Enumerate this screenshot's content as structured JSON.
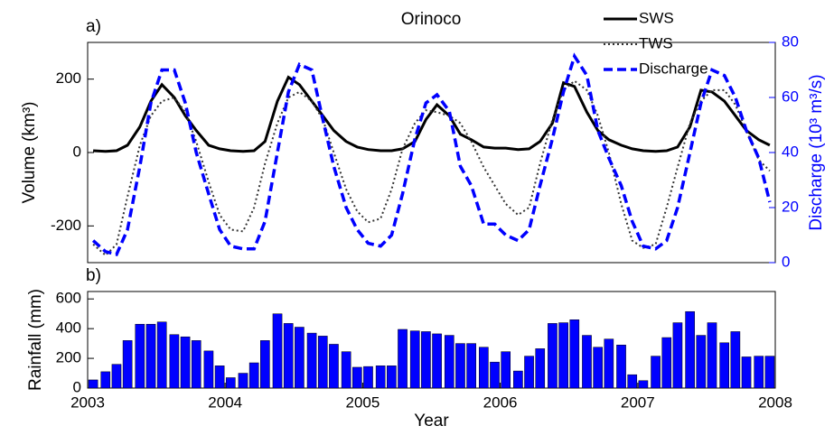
{
  "chart_data": [
    {
      "type": "line",
      "panel_label": "a)",
      "title": "Orinoco",
      "ylabel": "Volume (km³)",
      "y2label": "Discharge (10³ m³/s)",
      "y2color": "#0000ff",
      "xlim": [
        2003,
        2008
      ],
      "ylim": [
        -300,
        300
      ],
      "yticks": [
        -200,
        0,
        200
      ],
      "y2lim": [
        0,
        80
      ],
      "y2ticks": [
        0,
        20,
        40,
        60,
        80
      ],
      "legend": "upper right",
      "x": [
        2003.04,
        2003.13,
        2003.21,
        2003.29,
        2003.38,
        2003.46,
        2003.54,
        2003.63,
        2003.71,
        2003.79,
        2003.88,
        2003.96,
        2004.04,
        2004.13,
        2004.21,
        2004.29,
        2004.38,
        2004.46,
        2004.54,
        2004.63,
        2004.71,
        2004.79,
        2004.88,
        2004.96,
        2005.04,
        2005.13,
        2005.21,
        2005.29,
        2005.38,
        2005.46,
        2005.54,
        2005.63,
        2005.71,
        2005.79,
        2005.88,
        2005.96,
        2006.04,
        2006.13,
        2006.21,
        2006.29,
        2006.38,
        2006.46,
        2006.54,
        2006.63,
        2006.71,
        2006.79,
        2006.88,
        2006.96,
        2007.04,
        2007.13,
        2007.21,
        2007.29,
        2007.38,
        2007.46,
        2007.54,
        2007.63,
        2007.71,
        2007.79,
        2007.88,
        2007.96
      ],
      "series": [
        {
          "name": "SWS",
          "color": "#000000",
          "linestyle": "solid",
          "width": 3,
          "values": [
            5,
            3,
            5,
            20,
            70,
            140,
            185,
            150,
            100,
            60,
            20,
            10,
            5,
            3,
            5,
            30,
            140,
            205,
            185,
            140,
            100,
            60,
            30,
            15,
            8,
            5,
            5,
            10,
            30,
            90,
            130,
            100,
            50,
            35,
            15,
            12,
            12,
            8,
            10,
            30,
            80,
            190,
            180,
            110,
            60,
            35,
            20,
            10,
            5,
            3,
            5,
            15,
            70,
            170,
            165,
            140,
            100,
            60,
            35,
            20
          ]
        },
        {
          "name": "TWS",
          "color": "#333333",
          "linestyle": "dotted",
          "width": 2,
          "values": [
            -250,
            -280,
            -250,
            -120,
            20,
            100,
            140,
            150,
            110,
            30,
            -80,
            -170,
            -210,
            -215,
            -150,
            -30,
            80,
            150,
            165,
            140,
            90,
            0,
            -100,
            -160,
            -190,
            -180,
            -100,
            10,
            80,
            115,
            110,
            100,
            80,
            30,
            -40,
            -90,
            -140,
            -170,
            -150,
            -30,
            90,
            170,
            195,
            170,
            100,
            0,
            -140,
            -240,
            -260,
            -250,
            -150,
            -40,
            80,
            140,
            170,
            170,
            130,
            60,
            -20,
            -50
          ]
        },
        {
          "name": "Discharge",
          "color": "#0000ff",
          "linestyle": "dashed",
          "width": 3.5,
          "axis": "y2",
          "values": [
            8,
            4,
            3,
            12,
            35,
            58,
            70,
            70,
            58,
            40,
            25,
            12,
            6,
            5,
            5,
            15,
            40,
            62,
            72,
            70,
            52,
            35,
            20,
            12,
            7,
            6,
            10,
            25,
            45,
            58,
            61,
            55,
            35,
            28,
            14,
            14,
            10,
            8,
            12,
            28,
            45,
            62,
            75,
            68,
            48,
            38,
            28,
            15,
            6,
            5,
            8,
            20,
            40,
            58,
            70,
            68,
            60,
            48,
            38,
            22
          ]
        }
      ]
    },
    {
      "type": "bar",
      "panel_label": "b)",
      "xlabel": "Year",
      "ylabel": "Rainfall (mm)",
      "color": "#0000ff",
      "xlim": [
        2003,
        2008
      ],
      "xticks": [
        2003,
        2004,
        2005,
        2006,
        2007,
        2008
      ],
      "ylim": [
        0,
        650
      ],
      "yticks": [
        0,
        200,
        400,
        600
      ],
      "x": [
        2003.04,
        2003.13,
        2003.21,
        2003.29,
        2003.38,
        2003.46,
        2003.54,
        2003.63,
        2003.71,
        2003.79,
        2003.88,
        2003.96,
        2004.04,
        2004.13,
        2004.21,
        2004.29,
        2004.38,
        2004.46,
        2004.54,
        2004.63,
        2004.71,
        2004.79,
        2004.88,
        2004.96,
        2005.04,
        2005.13,
        2005.21,
        2005.29,
        2005.38,
        2005.46,
        2005.54,
        2005.63,
        2005.71,
        2005.79,
        2005.88,
        2005.96,
        2006.04,
        2006.13,
        2006.21,
        2006.29,
        2006.38,
        2006.46,
        2006.54,
        2006.63,
        2006.71,
        2006.79,
        2006.88,
        2006.96,
        2007.04,
        2007.13,
        2007.21,
        2007.29,
        2007.38,
        2007.46,
        2007.54,
        2007.63,
        2007.71,
        2007.79,
        2007.88,
        2007.96
      ],
      "values": [
        55,
        110,
        160,
        320,
        430,
        430,
        445,
        360,
        345,
        320,
        250,
        150,
        70,
        100,
        170,
        320,
        500,
        435,
        410,
        370,
        350,
        295,
        245,
        140,
        145,
        150,
        150,
        395,
        385,
        380,
        365,
        355,
        300,
        300,
        275,
        175,
        245,
        115,
        215,
        265,
        435,
        440,
        460,
        355,
        275,
        330,
        290,
        90,
        50,
        215,
        340,
        440,
        515,
        355,
        440,
        305,
        380,
        210,
        215,
        215
      ]
    }
  ]
}
